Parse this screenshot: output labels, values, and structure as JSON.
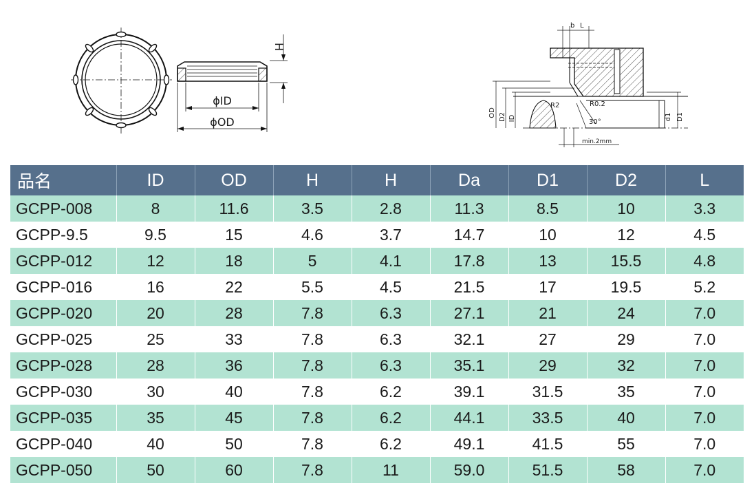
{
  "figure": {
    "labels": {
      "h": "H",
      "id": "ϕID",
      "od": "ϕOD",
      "b": "b",
      "l": "L",
      "od_v": "OD",
      "d2": "D2",
      "id_v": "ID",
      "d1": "D1",
      "d1_small": "d1",
      "r2": "R2",
      "r02": "R0.2",
      "angle": "30°",
      "min": "min.2mm"
    }
  },
  "table": {
    "headers": [
      "品名",
      "ID",
      "OD",
      "H",
      "H",
      "Da",
      "D1",
      "D2",
      "L"
    ],
    "rows": [
      [
        "GCPP-008",
        "8",
        "11.6",
        "3.5",
        "2.8",
        "11.3",
        "8.5",
        "10",
        "3.3"
      ],
      [
        "GCPP-9.5",
        "9.5",
        "15",
        "4.6",
        "3.7",
        "14.7",
        "10",
        "12",
        "4.5"
      ],
      [
        "GCPP-012",
        "12",
        "18",
        "5",
        "4.1",
        "17.8",
        "13",
        "15.5",
        "4.8"
      ],
      [
        "GCPP-016",
        "16",
        "22",
        "5.5",
        "4.5",
        "21.5",
        "17",
        "19.5",
        "5.2"
      ],
      [
        "GCPP-020",
        "20",
        "28",
        "7.8",
        "6.3",
        "27.1",
        "21",
        "24",
        "7.0"
      ],
      [
        "GCPP-025",
        "25",
        "33",
        "7.8",
        "6.3",
        "32.1",
        "27",
        "29",
        "7.0"
      ],
      [
        "GCPP-028",
        "28",
        "36",
        "7.8",
        "6.3",
        "35.1",
        "29",
        "32",
        "7.0"
      ],
      [
        "GCPP-030",
        "30",
        "40",
        "7.8",
        "6.2",
        "39.1",
        "31.5",
        "35",
        "7.0"
      ],
      [
        "GCPP-035",
        "35",
        "45",
        "7.8",
        "6.2",
        "44.1",
        "33.5",
        "40",
        "7.0"
      ],
      [
        "GCPP-040",
        "40",
        "50",
        "7.8",
        "6.2",
        "49.1",
        "41.5",
        "55",
        "7.0"
      ],
      [
        "GCPP-050",
        "50",
        "60",
        "7.8",
        "11",
        "59.0",
        "51.5",
        "58",
        "7.0"
      ]
    ]
  },
  "colors": {
    "header_bg": "#56708c",
    "stripe_bg": "#b2e3d2"
  }
}
